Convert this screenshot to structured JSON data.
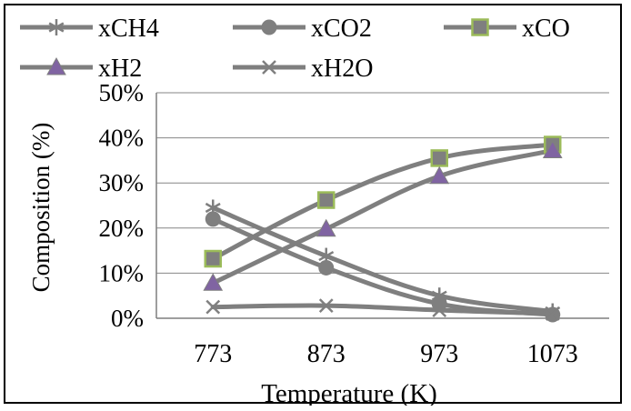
{
  "chart_data": {
    "type": "line",
    "title": "",
    "xlabel": "Temperature (K)",
    "ylabel": "Composition (%)",
    "x": [
      773,
      873,
      973,
      1073
    ],
    "x_tick_labels": [
      "773",
      "873",
      "973",
      "1073"
    ],
    "y_tick_labels": [
      "0%",
      "10%",
      "20%",
      "30%",
      "40%",
      "50%"
    ],
    "ylim": [
      0,
      50
    ],
    "grid": "horizontal",
    "legend_position": "top",
    "series": [
      {
        "name": "xCH4",
        "marker": "asterisk",
        "values": [
          24.5,
          13.8,
          5.0,
          1.5
        ]
      },
      {
        "name": "xCO2",
        "marker": "circle",
        "values": [
          22.0,
          11.2,
          3.2,
          0.8
        ]
      },
      {
        "name": "xCO",
        "marker": "square",
        "values": [
          13.2,
          26.2,
          35.5,
          38.5
        ]
      },
      {
        "name": "xH2",
        "marker": "triangle",
        "values": [
          7.8,
          19.8,
          31.5,
          37.2
        ]
      },
      {
        "name": "xH2O",
        "marker": "x",
        "values": [
          2.5,
          2.8,
          1.8,
          1.0
        ]
      }
    ],
    "colors": {
      "line": "#7f7f7f",
      "square_marker_fill": "#7f7f7f",
      "square_marker_edge": "#9bbb59",
      "triangle_marker_fill": "#8064a2",
      "grid": "#868686"
    }
  }
}
